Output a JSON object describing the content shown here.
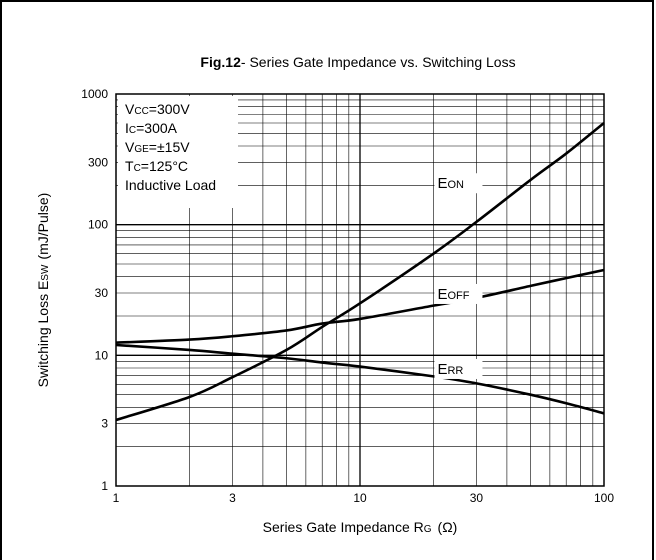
{
  "chart_data": {
    "type": "line",
    "title_prefix": "Fig.12",
    "title_rest": "- Series Gate Impedance vs. Switching Loss",
    "xlabel": {
      "main": "Series Gate Impedance R",
      "sub": "G",
      "unit": "(Ω)"
    },
    "ylabel": {
      "main": "Switching Loss E",
      "sub": "SW",
      "unit": "(mJ/Pulse)"
    },
    "x_scale": "log",
    "y_scale": "log",
    "xlim": [
      1,
      100
    ],
    "ylim": [
      1,
      1000
    ],
    "x_ticks": [
      1,
      3,
      10,
      30,
      100
    ],
    "x_tick_labels": [
      "1",
      "3",
      "10",
      "30",
      "100"
    ],
    "y_ticks": [
      1,
      3,
      10,
      30,
      100,
      300,
      1000
    ],
    "y_tick_labels": [
      "1",
      "3",
      "10",
      "30",
      "100",
      "300",
      "1000"
    ],
    "grid": true,
    "conditions": [
      {
        "main": "V",
        "sub": "CC",
        "rest": "=300V"
      },
      {
        "main": "I",
        "sub": "C",
        "rest": "=300A"
      },
      {
        "main": "V",
        "sub": "GE",
        "rest": "=±15V"
      },
      {
        "main": "T",
        "sub": "C",
        "rest": "=125°C"
      },
      {
        "main": "Inductive Load",
        "sub": "",
        "rest": ""
      }
    ],
    "series": [
      {
        "name": "EON",
        "label_main": "E",
        "label_sub": "ON",
        "x": [
          1,
          2,
          3,
          5,
          7,
          10,
          20,
          30,
          50,
          70,
          100
        ],
        "y": [
          3.2,
          4.8,
          6.8,
          11,
          16.5,
          25,
          60,
          105,
          220,
          350,
          600
        ]
      },
      {
        "name": "EOFF",
        "label_main": "E",
        "label_sub": "OFF",
        "x": [
          1,
          2,
          3,
          5,
          7,
          10,
          20,
          30,
          50,
          70,
          100
        ],
        "y": [
          12.5,
          13.2,
          14,
          15.5,
          17.5,
          19,
          24,
          27.5,
          34,
          39,
          45
        ]
      },
      {
        "name": "ERR",
        "label_main": "E",
        "label_sub": "RR",
        "x": [
          1,
          2,
          3,
          5,
          7,
          10,
          20,
          30,
          50,
          70,
          100
        ],
        "y": [
          12,
          11,
          10.3,
          9.5,
          8.8,
          8.2,
          6.9,
          6.1,
          5,
          4.3,
          3.6
        ]
      }
    ]
  }
}
